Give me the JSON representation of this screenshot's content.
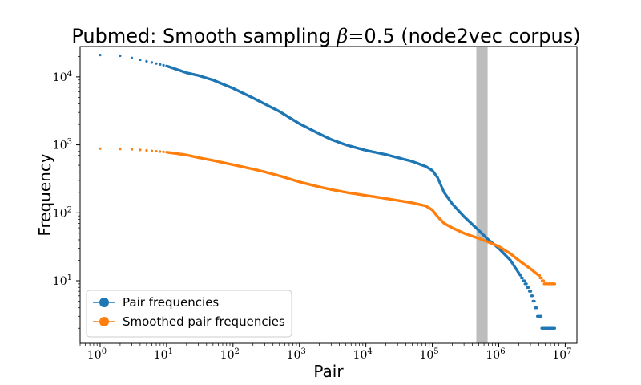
{
  "chart_data": {
    "type": "scatter",
    "title_prefix": "Pubmed: Smooth sampling ",
    "title_beta_symbol": "β",
    "title_suffix": "=0.5 (node2vec corpus)",
    "xlabel": "Pair",
    "ylabel": "Frequency",
    "xscale": "log",
    "yscale": "log",
    "xlim": [
      0.5,
      15000000
    ],
    "ylim": [
      1.2,
      28000
    ],
    "x_ticks": [
      {
        "base": "10",
        "exp": "0",
        "value": 1
      },
      {
        "base": "10",
        "exp": "1",
        "value": 10
      },
      {
        "base": "10",
        "exp": "2",
        "value": 100
      },
      {
        "base": "10",
        "exp": "3",
        "value": 1000
      },
      {
        "base": "10",
        "exp": "4",
        "value": 10000
      },
      {
        "base": "10",
        "exp": "5",
        "value": 100000
      },
      {
        "base": "10",
        "exp": "6",
        "value": 1000000
      },
      {
        "base": "10",
        "exp": "7",
        "value": 10000000
      }
    ],
    "y_ticks": [
      {
        "base": "10",
        "exp": "1",
        "value": 10
      },
      {
        "base": "10",
        "exp": "2",
        "value": 100
      },
      {
        "base": "10",
        "exp": "3",
        "value": 1000
      },
      {
        "base": "10",
        "exp": "4",
        "value": 10000
      }
    ],
    "highlight_band": {
      "x_start": 460000,
      "x_end": 680000,
      "color": "#bdbdbd"
    },
    "legend_location": "lower-left",
    "series": [
      {
        "name": "Pair frequencies",
        "color": "#1f77b4",
        "points": [
          [
            1,
            21000
          ],
          [
            2,
            20500
          ],
          [
            3,
            19000
          ],
          [
            5,
            17000
          ],
          [
            10,
            14500
          ],
          [
            20,
            11500
          ],
          [
            30,
            10500
          ],
          [
            50,
            9000
          ],
          [
            100,
            6800
          ],
          [
            200,
            4900
          ],
          [
            300,
            4000
          ],
          [
            500,
            3100
          ],
          [
            1000,
            2050
          ],
          [
            2000,
            1450
          ],
          [
            3000,
            1200
          ],
          [
            5000,
            1000
          ],
          [
            10000,
            830
          ],
          [
            20000,
            720
          ],
          [
            30000,
            650
          ],
          [
            50000,
            570
          ],
          [
            80000,
            480
          ],
          [
            100000,
            420
          ],
          [
            120000,
            330
          ],
          [
            150000,
            200
          ],
          [
            200000,
            135
          ],
          [
            300000,
            88
          ],
          [
            500000,
            55
          ],
          [
            700000,
            40
          ],
          [
            1000000,
            30
          ],
          [
            1500000,
            20
          ],
          [
            2000000,
            13
          ],
          [
            3000000,
            7
          ],
          [
            4000000,
            3
          ],
          [
            5000000,
            2
          ],
          [
            7000000,
            2
          ]
        ]
      },
      {
        "name": "Smoothed pair frequencies",
        "color": "#ff7f0e",
        "points": [
          [
            1,
            880
          ],
          [
            2,
            870
          ],
          [
            3,
            860
          ],
          [
            5,
            830
          ],
          [
            10,
            780
          ],
          [
            20,
            710
          ],
          [
            30,
            650
          ],
          [
            50,
            590
          ],
          [
            100,
            510
          ],
          [
            200,
            440
          ],
          [
            300,
            400
          ],
          [
            500,
            350
          ],
          [
            1000,
            285
          ],
          [
            2000,
            240
          ],
          [
            3000,
            220
          ],
          [
            5000,
            200
          ],
          [
            10000,
            180
          ],
          [
            20000,
            162
          ],
          [
            30000,
            152
          ],
          [
            50000,
            140
          ],
          [
            80000,
            126
          ],
          [
            100000,
            110
          ],
          [
            120000,
            88
          ],
          [
            150000,
            70
          ],
          [
            200000,
            60
          ],
          [
            300000,
            50
          ],
          [
            500000,
            42
          ],
          [
            700000,
            37
          ],
          [
            1000000,
            32
          ],
          [
            1500000,
            25
          ],
          [
            2000000,
            20
          ],
          [
            3000000,
            15
          ],
          [
            4000000,
            12
          ],
          [
            5000000,
            9
          ],
          [
            7000000,
            9
          ]
        ]
      }
    ]
  }
}
